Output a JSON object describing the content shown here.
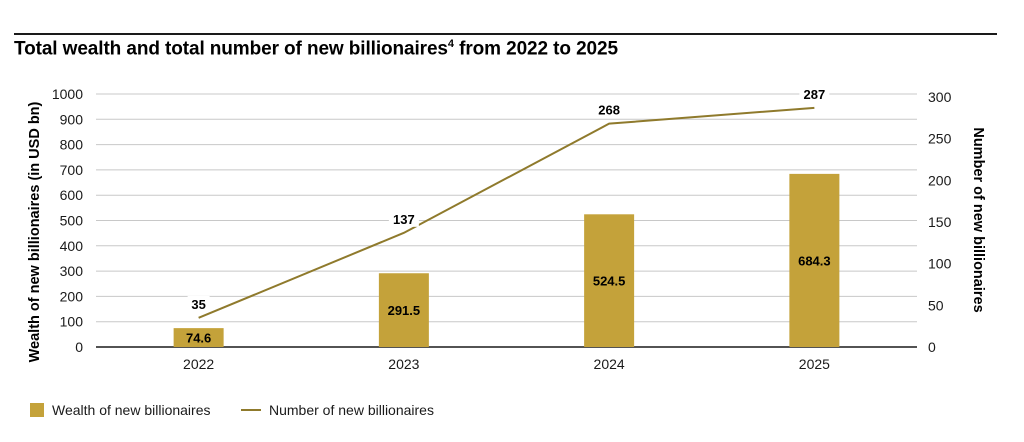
{
  "title": {
    "text": "Total wealth and total number of new billionaires",
    "superscript": "4",
    "suffix": " from 2022 to 2025"
  },
  "colors": {
    "bar": "#c4a23a",
    "line": "#8f7a2c",
    "grid": "#c8c8c8",
    "axis": "#1a1a1a"
  },
  "chart_data": {
    "type": "bar",
    "categories": [
      "2022",
      "2023",
      "2024",
      "2025"
    ],
    "series": [
      {
        "name": "Wealth of new billionaires",
        "type": "bar",
        "axis": "left",
        "values": [
          74.6,
          291.5,
          524.5,
          684.3
        ],
        "labels": [
          "74.6",
          "291.5",
          "524.5",
          "684.3"
        ]
      },
      {
        "name": "Number of new billionaires",
        "type": "line",
        "axis": "right",
        "values": [
          35,
          137,
          268,
          287
        ],
        "labels": [
          "35",
          "137",
          "268",
          "287"
        ]
      }
    ],
    "ylabel": "Wealth of new billionaires (in USD bn)",
    "ylim": [
      0,
      1000
    ],
    "yticks": [
      "0",
      "100",
      "200",
      "300",
      "400",
      "500",
      "600",
      "700",
      "800",
      "900",
      "1000"
    ],
    "y2label": "Number of new billionaires",
    "y2lim": [
      0,
      300
    ],
    "y2ticks": [
      "0",
      "50",
      "100",
      "150",
      "200",
      "250",
      "300"
    ],
    "grid": true,
    "legend_position": "bottom-left"
  },
  "legend": {
    "bar_label": "Wealth of new billionaires",
    "line_label": "Number of new billionaires"
  }
}
